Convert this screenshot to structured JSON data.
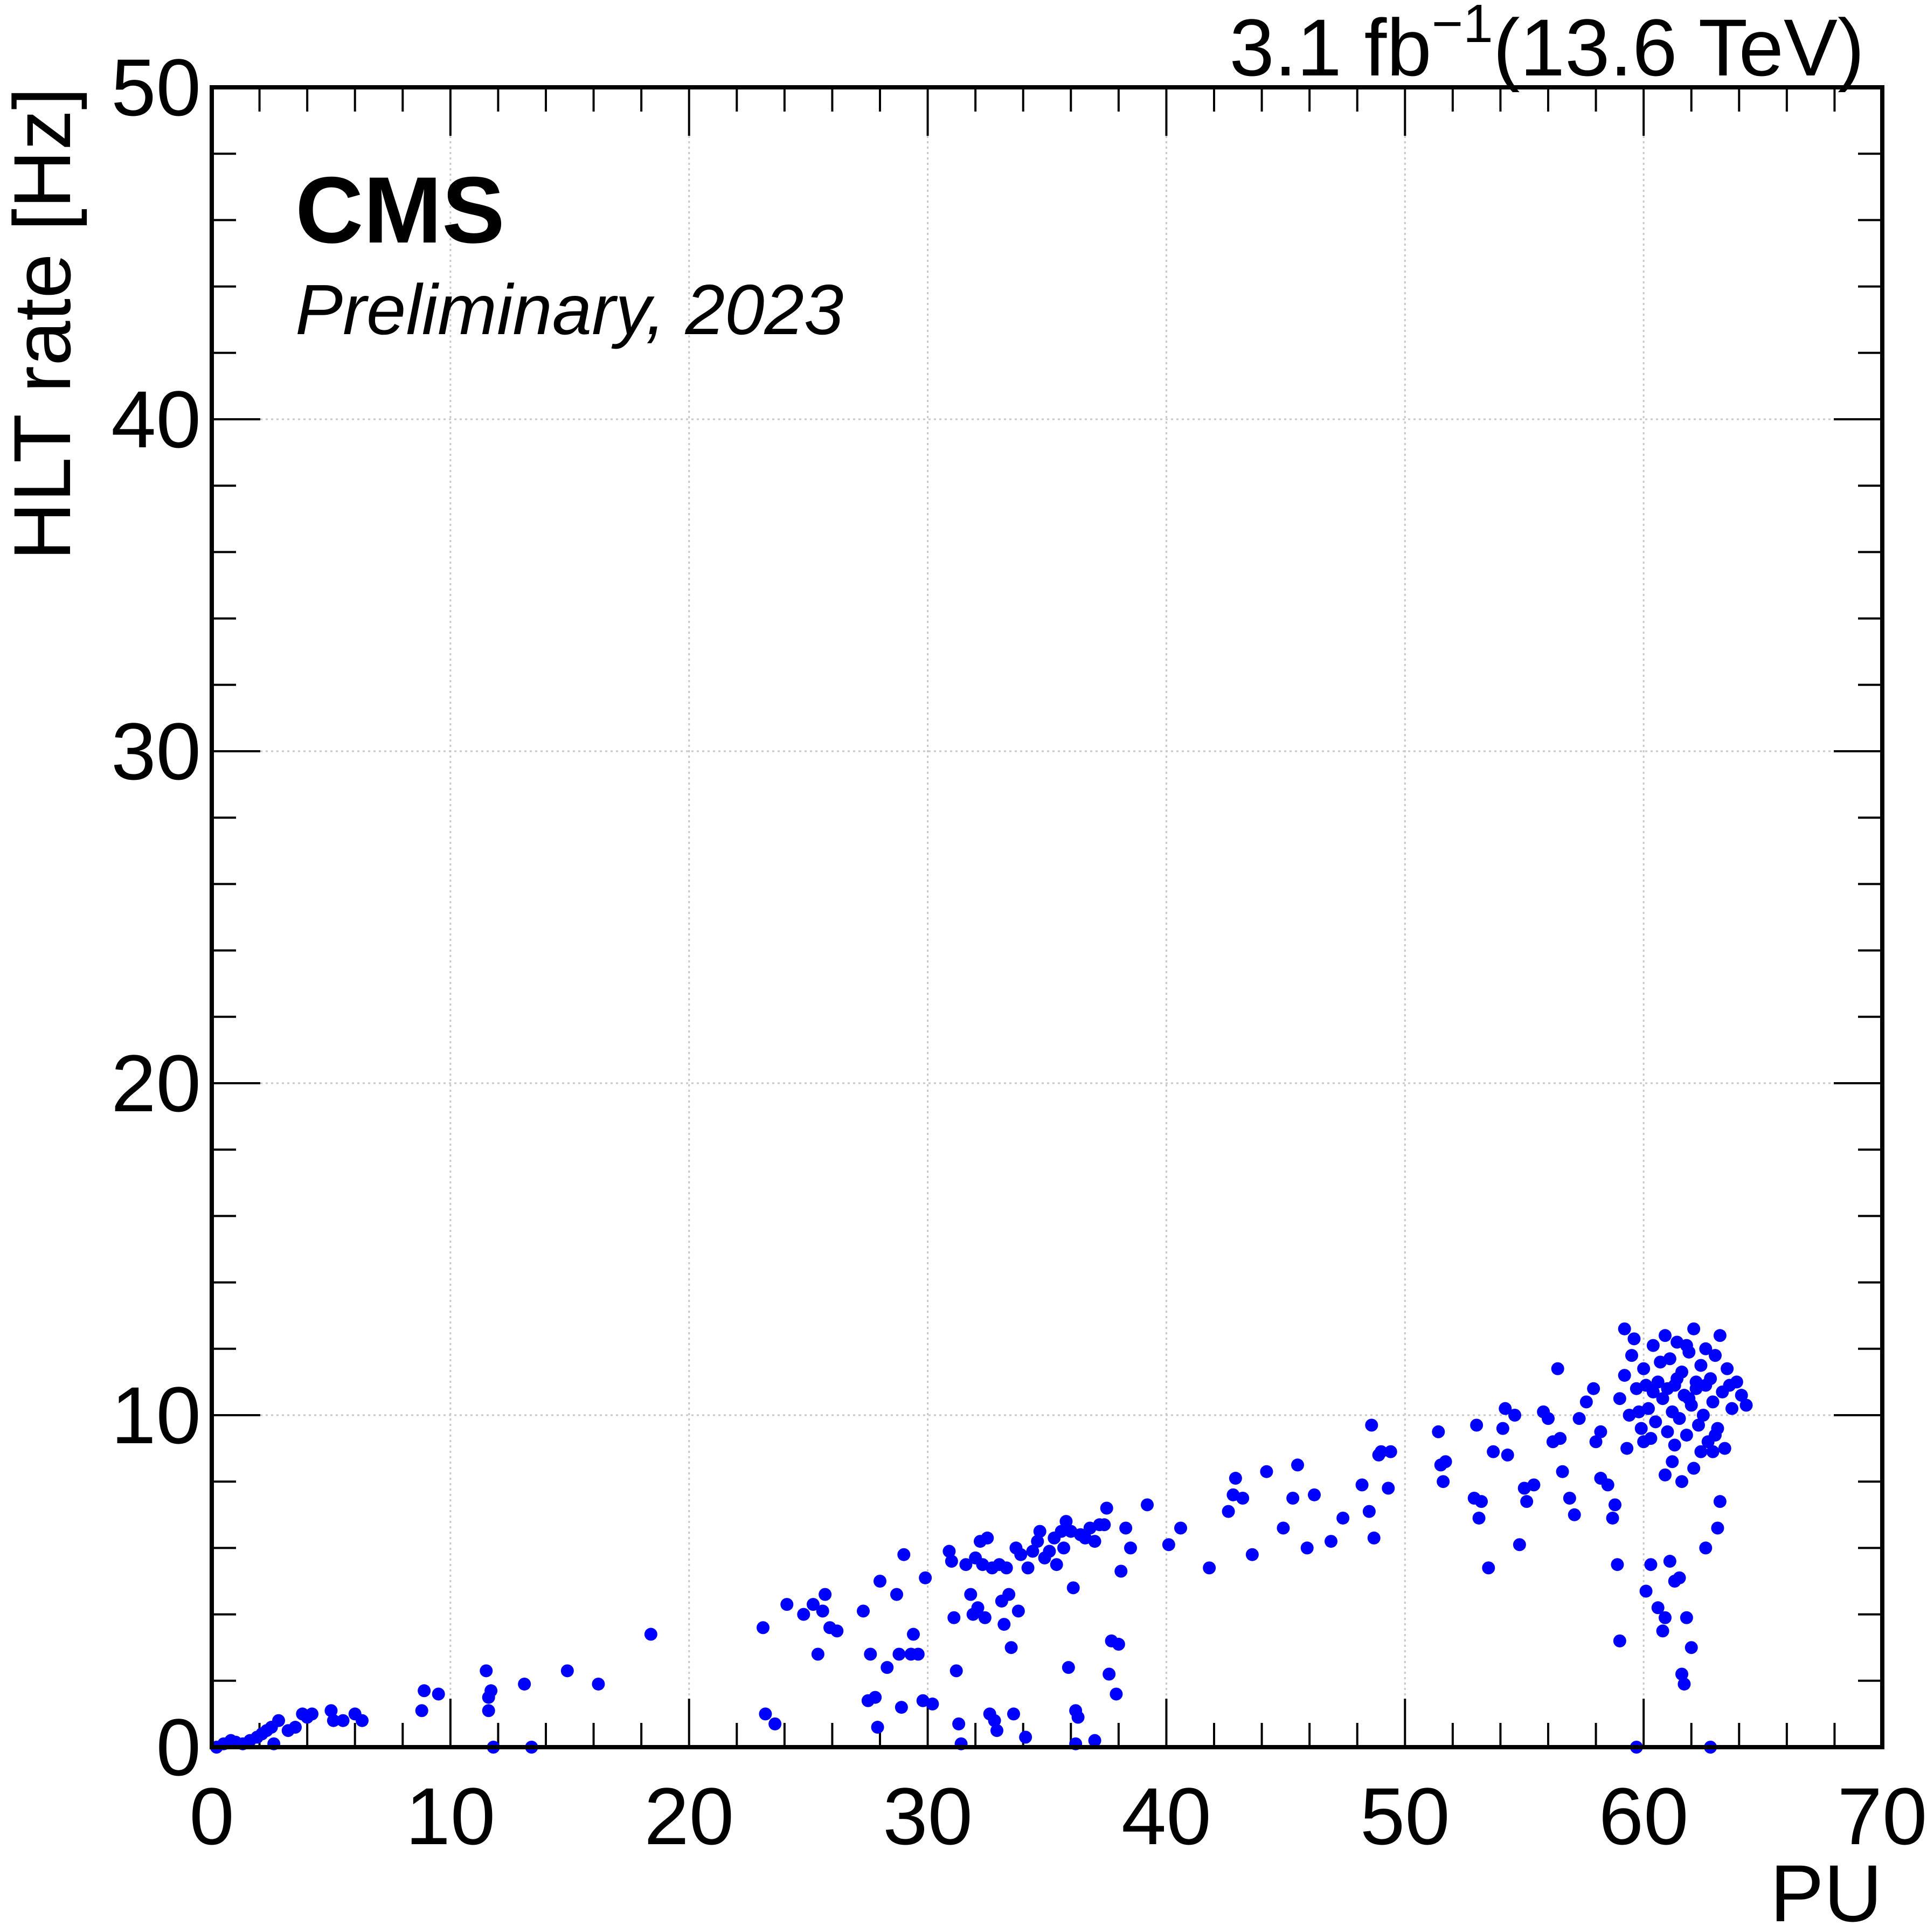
{
  "chart_data": {
    "type": "scatter",
    "title": "",
    "top_right_label": {
      "value": "3.1 fb",
      "exponent": "−1",
      "suffix": "(13.6 TeV)"
    },
    "experiment": "CMS",
    "subtitle": "Preliminary, 2023",
    "xlabel": "PU",
    "ylabel": "HLT rate [Hz]",
    "xlim": [
      0,
      70
    ],
    "ylim": [
      0,
      50
    ],
    "xticks": [
      0,
      10,
      20,
      30,
      40,
      50,
      60,
      70
    ],
    "yticks": [
      0,
      10,
      20,
      30,
      40,
      50
    ],
    "grid": true,
    "marker_color": "#0000ff",
    "series": [
      {
        "name": "HLT rate",
        "points": [
          [
            0.2,
            0.0
          ],
          [
            0.5,
            0.1
          ],
          [
            0.8,
            0.2
          ],
          [
            1.0,
            0.15
          ],
          [
            1.3,
            0.1
          ],
          [
            1.6,
            0.2
          ],
          [
            1.9,
            0.3
          ],
          [
            2.1,
            0.4
          ],
          [
            2.3,
            0.5
          ],
          [
            2.5,
            0.6
          ],
          [
            2.6,
            0.1
          ],
          [
            2.8,
            0.8
          ],
          [
            3.2,
            0.5
          ],
          [
            3.5,
            0.6
          ],
          [
            3.8,
            1.0
          ],
          [
            4.0,
            0.9
          ],
          [
            4.2,
            1.0
          ],
          [
            5.0,
            1.1
          ],
          [
            5.1,
            0.8
          ],
          [
            5.5,
            0.8
          ],
          [
            6.0,
            1.0
          ],
          [
            6.3,
            0.8
          ],
          [
            8.8,
            1.1
          ],
          [
            8.9,
            1.7
          ],
          [
            9.5,
            1.6
          ],
          [
            11.5,
            2.3
          ],
          [
            11.6,
            1.5
          ],
          [
            11.7,
            1.7
          ],
          [
            11.6,
            1.1
          ],
          [
            11.8,
            0.0
          ],
          [
            13.1,
            1.9
          ],
          [
            13.4,
            0.0
          ],
          [
            14.9,
            2.3
          ],
          [
            16.2,
            1.9
          ],
          [
            18.4,
            3.4
          ],
          [
            23.1,
            3.6
          ],
          [
            23.2,
            1.0
          ],
          [
            23.6,
            0.7
          ],
          [
            24.1,
            4.3
          ],
          [
            24.8,
            4.0
          ],
          [
            25.2,
            4.3
          ],
          [
            25.4,
            2.8
          ],
          [
            25.6,
            4.1
          ],
          [
            25.7,
            4.6
          ],
          [
            25.9,
            3.6
          ],
          [
            26.2,
            3.5
          ],
          [
            27.3,
            4.1
          ],
          [
            27.5,
            1.4
          ],
          [
            27.6,
            2.8
          ],
          [
            27.8,
            1.5
          ],
          [
            27.9,
            0.6
          ],
          [
            28.0,
            5.0
          ],
          [
            28.3,
            2.4
          ],
          [
            28.7,
            4.6
          ],
          [
            28.8,
            2.8
          ],
          [
            28.9,
            1.2
          ],
          [
            29.0,
            5.8
          ],
          [
            29.3,
            2.8
          ],
          [
            29.4,
            3.4
          ],
          [
            29.6,
            2.8
          ],
          [
            29.8,
            1.4
          ],
          [
            29.9,
            5.1
          ],
          [
            30.2,
            1.3
          ],
          [
            30.9,
            5.9
          ],
          [
            31.0,
            5.6
          ],
          [
            31.1,
            3.9
          ],
          [
            31.2,
            2.3
          ],
          [
            31.3,
            0.7
          ],
          [
            31.4,
            0.1
          ],
          [
            31.6,
            5.5
          ],
          [
            31.8,
            4.6
          ],
          [
            31.9,
            4.0
          ],
          [
            32.0,
            5.7
          ],
          [
            32.1,
            4.2
          ],
          [
            32.2,
            6.2
          ],
          [
            32.3,
            5.5
          ],
          [
            32.4,
            3.9
          ],
          [
            32.5,
            6.3
          ],
          [
            32.6,
            1.0
          ],
          [
            32.7,
            5.4
          ],
          [
            32.8,
            0.8
          ],
          [
            32.9,
            0.5
          ],
          [
            33.0,
            5.5
          ],
          [
            33.1,
            4.4
          ],
          [
            33.2,
            3.7
          ],
          [
            33.3,
            5.4
          ],
          [
            33.4,
            4.6
          ],
          [
            33.5,
            3.0
          ],
          [
            33.6,
            1.0
          ],
          [
            33.7,
            6.0
          ],
          [
            33.8,
            4.1
          ],
          [
            33.9,
            5.8
          ],
          [
            34.1,
            0.3
          ],
          [
            34.2,
            5.4
          ],
          [
            34.4,
            5.9
          ],
          [
            34.6,
            6.2
          ],
          [
            34.7,
            6.5
          ],
          [
            34.9,
            5.7
          ],
          [
            35.1,
            5.9
          ],
          [
            35.3,
            6.3
          ],
          [
            35.4,
            5.5
          ],
          [
            35.6,
            6.5
          ],
          [
            35.7,
            6.0
          ],
          [
            35.8,
            6.8
          ],
          [
            35.9,
            2.4
          ],
          [
            36.0,
            6.5
          ],
          [
            36.1,
            4.8
          ],
          [
            36.2,
            0.1
          ],
          [
            36.4,
            6.4
          ],
          [
            36.6,
            6.3
          ],
          [
            36.8,
            6.6
          ],
          [
            37.0,
            6.2
          ],
          [
            37.2,
            6.7
          ],
          [
            37.4,
            6.7
          ],
          [
            37.7,
            3.2
          ],
          [
            37.9,
            1.6
          ],
          [
            38.1,
            5.3
          ],
          [
            38.3,
            6.6
          ],
          [
            36.2,
            1.1
          ],
          [
            36.3,
            0.9
          ],
          [
            37.0,
            0.2
          ],
          [
            37.5,
            7.2
          ],
          [
            37.6,
            2.2
          ],
          [
            38.0,
            3.1
          ],
          [
            38.5,
            6.0
          ],
          [
            39.2,
            7.3
          ],
          [
            40.1,
            6.1
          ],
          [
            40.6,
            6.6
          ],
          [
            41.8,
            5.4
          ],
          [
            42.6,
            7.1
          ],
          [
            42.8,
            7.6
          ],
          [
            42.9,
            8.1
          ],
          [
            43.2,
            7.5
          ],
          [
            43.6,
            5.8
          ],
          [
            44.2,
            8.3
          ],
          [
            44.9,
            6.6
          ],
          [
            45.3,
            7.5
          ],
          [
            45.5,
            8.5
          ],
          [
            45.9,
            6.0
          ],
          [
            46.2,
            7.6
          ],
          [
            46.9,
            6.2
          ],
          [
            47.4,
            6.9
          ],
          [
            48.2,
            7.9
          ],
          [
            48.5,
            7.1
          ],
          [
            48.6,
            9.7
          ],
          [
            48.7,
            6.3
          ],
          [
            48.9,
            8.8
          ],
          [
            49.0,
            8.9
          ],
          [
            49.3,
            7.8
          ],
          [
            49.4,
            8.9
          ],
          [
            51.4,
            9.5
          ],
          [
            51.5,
            8.5
          ],
          [
            51.6,
            8.0
          ],
          [
            51.7,
            8.6
          ],
          [
            52.9,
            7.5
          ],
          [
            53.0,
            9.7
          ],
          [
            53.1,
            6.9
          ],
          [
            53.2,
            7.4
          ],
          [
            53.5,
            5.4
          ],
          [
            53.7,
            8.9
          ],
          [
            54.1,
            9.6
          ],
          [
            54.2,
            10.2
          ],
          [
            54.3,
            8.8
          ],
          [
            54.6,
            10.0
          ],
          [
            54.8,
            6.1
          ],
          [
            55.0,
            7.8
          ],
          [
            55.1,
            7.4
          ],
          [
            55.4,
            7.9
          ],
          [
            55.8,
            10.1
          ],
          [
            56.0,
            9.9
          ],
          [
            56.2,
            9.2
          ],
          [
            56.4,
            11.4
          ],
          [
            56.5,
            9.3
          ],
          [
            56.6,
            8.3
          ],
          [
            56.9,
            7.5
          ],
          [
            57.1,
            7.0
          ],
          [
            57.3,
            9.9
          ],
          [
            57.6,
            10.4
          ],
          [
            57.9,
            10.8
          ],
          [
            58.0,
            9.2
          ],
          [
            58.2,
            8.1
          ],
          [
            58.5,
            7.9
          ],
          [
            58.7,
            6.9
          ],
          [
            58.9,
            5.5
          ],
          [
            59.0,
            3.2
          ],
          [
            59.2,
            12.6
          ],
          [
            59.7,
            0.0
          ],
          [
            60.1,
            4.7
          ],
          [
            60.3,
            5.5
          ],
          [
            60.6,
            4.2
          ],
          [
            60.8,
            3.5
          ],
          [
            60.9,
            3.9
          ],
          [
            61.1,
            5.6
          ],
          [
            61.3,
            5.0
          ],
          [
            61.5,
            5.1
          ],
          [
            61.6,
            2.2
          ],
          [
            61.7,
            1.9
          ],
          [
            61.8,
            3.9
          ],
          [
            62.0,
            3.0
          ],
          [
            62.6,
            6.0
          ],
          [
            63.1,
            6.6
          ],
          [
            63.2,
            7.4
          ],
          [
            62.8,
            0.0
          ],
          [
            58.8,
            7.3
          ],
          [
            60.9,
            8.2
          ],
          [
            61.6,
            8.0
          ],
          [
            62.1,
            8.4
          ],
          [
            59.0,
            10.5
          ],
          [
            59.2,
            11.2
          ],
          [
            59.4,
            10.0
          ],
          [
            59.5,
            11.8
          ],
          [
            59.7,
            10.8
          ],
          [
            59.9,
            9.6
          ],
          [
            60.0,
            11.4
          ],
          [
            60.2,
            10.2
          ],
          [
            60.4,
            12.1
          ],
          [
            60.5,
            9.8
          ],
          [
            60.6,
            11.0
          ],
          [
            60.8,
            10.5
          ],
          [
            60.9,
            12.4
          ],
          [
            61.0,
            9.5
          ],
          [
            61.1,
            11.7
          ],
          [
            61.2,
            10.1
          ],
          [
            61.3,
            10.9
          ],
          [
            61.4,
            12.2
          ],
          [
            61.5,
            9.9
          ],
          [
            61.6,
            11.3
          ],
          [
            61.7,
            10.6
          ],
          [
            61.8,
            9.4
          ],
          [
            61.9,
            11.9
          ],
          [
            62.0,
            10.3
          ],
          [
            62.1,
            12.6
          ],
          [
            62.2,
            10.8
          ],
          [
            62.3,
            9.7
          ],
          [
            62.4,
            11.5
          ],
          [
            62.5,
            10.0
          ],
          [
            62.6,
            12.0
          ],
          [
            62.7,
            9.2
          ],
          [
            62.8,
            11.1
          ],
          [
            62.9,
            10.4
          ],
          [
            63.0,
            11.8
          ],
          [
            63.1,
            9.6
          ],
          [
            63.2,
            12.4
          ],
          [
            63.3,
            10.7
          ],
          [
            63.4,
            9.0
          ],
          [
            63.5,
            11.4
          ],
          [
            63.7,
            10.2
          ],
          [
            63.9,
            11.0
          ],
          [
            64.1,
            10.6
          ],
          [
            64.3,
            10.3
          ],
          [
            59.3,
            9.0
          ],
          [
            59.6,
            12.3
          ],
          [
            60.1,
            10.9
          ],
          [
            60.3,
            9.3
          ],
          [
            60.7,
            11.6
          ],
          [
            61.2,
            8.6
          ],
          [
            61.8,
            12.1
          ],
          [
            62.4,
            8.9
          ],
          [
            63.0,
            9.4
          ],
          [
            63.6,
            10.9
          ],
          [
            59.8,
            10.1
          ],
          [
            60.4,
            10.7
          ],
          [
            61.0,
            10.8
          ],
          [
            61.4,
            11.1
          ],
          [
            61.9,
            10.5
          ],
          [
            62.2,
            11.0
          ],
          [
            62.6,
            10.9
          ],
          [
            60.0,
            9.2
          ],
          [
            61.3,
            9.1
          ],
          [
            62.9,
            8.9
          ],
          [
            58.2,
            9.5
          ]
        ]
      }
    ]
  }
}
